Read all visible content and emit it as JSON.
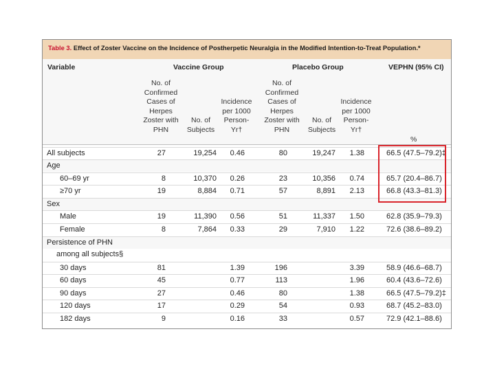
{
  "table": {
    "title_label": "Table 3.",
    "title_text": "Effect of Zoster Vaccine on the Incidence of Postherpetic Neuralgia in the Modified Intention-to-Treat Population.*",
    "variable_header": "Variable",
    "vaccine_group_header": "Vaccine Group",
    "placebo_group_header": "Placebo Group",
    "ve_header": "VEPHN (95% CI)",
    "col_cases_header": "No. of\nConfirmed\nCases of\nHerpes\nZoster with\nPHN",
    "col_subjects_header": "No. of\nSubjects",
    "col_incidence_header": "Incidence\nper 1000\nPerson-\nYr†",
    "percent_unit": "%",
    "rows": [
      {
        "label": "All subjects",
        "v_cases": "27",
        "v_subjects": "19,254",
        "v_inc": "0.46",
        "p_cases": "80",
        "p_subjects": "19,247",
        "p_inc": "1.38",
        "ve": "66.5 (47.5–79.2)‡"
      },
      {
        "label": "Age",
        "v_cases": "",
        "v_subjects": "",
        "v_inc": "",
        "p_cases": "",
        "p_subjects": "",
        "p_inc": "",
        "ve": ""
      },
      {
        "label": "60–69 yr",
        "v_cases": "8",
        "v_subjects": "10,370",
        "v_inc": "0.26",
        "p_cases": "23",
        "p_subjects": "10,356",
        "p_inc": "0.74",
        "ve": "65.7 (20.4–86.7)"
      },
      {
        "label": "≥70 yr",
        "v_cases": "19",
        "v_subjects": "8,884",
        "v_inc": "0.71",
        "p_cases": "57",
        "p_subjects": "8,891",
        "p_inc": "2.13",
        "ve": "66.8 (43.3–81.3)"
      },
      {
        "label": "Sex",
        "v_cases": "",
        "v_subjects": "",
        "v_inc": "",
        "p_cases": "",
        "p_subjects": "",
        "p_inc": "",
        "ve": ""
      },
      {
        "label": "Male",
        "v_cases": "19",
        "v_subjects": "11,390",
        "v_inc": "0.56",
        "p_cases": "51",
        "p_subjects": "11,337",
        "p_inc": "1.50",
        "ve": "62.8 (35.9–79.3)"
      },
      {
        "label": "Female",
        "v_cases": "8",
        "v_subjects": "7,864",
        "v_inc": "0.33",
        "p_cases": "29",
        "p_subjects": "7,910",
        "p_inc": "1.22",
        "ve": "72.6 (38.6–89.2)"
      },
      {
        "label": "Persistence of PHN",
        "v_cases": "",
        "v_subjects": "",
        "v_inc": "",
        "p_cases": "",
        "p_subjects": "",
        "p_inc": "",
        "ve": ""
      },
      {
        "label": "among all subjects§",
        "v_cases": "",
        "v_subjects": "",
        "v_inc": "",
        "p_cases": "",
        "p_subjects": "",
        "p_inc": "",
        "ve": ""
      },
      {
        "label": "30 days",
        "v_cases": "81",
        "v_subjects": "",
        "v_inc": "1.39",
        "p_cases": "196",
        "p_subjects": "",
        "p_inc": "3.39",
        "ve": "58.9 (46.6–68.7)"
      },
      {
        "label": "60 days",
        "v_cases": "45",
        "v_subjects": "",
        "v_inc": "0.77",
        "p_cases": "113",
        "p_subjects": "",
        "p_inc": "1.96",
        "ve": "60.4 (43.6–72.6)"
      },
      {
        "label": "90 days",
        "v_cases": "27",
        "v_subjects": "",
        "v_inc": "0.46",
        "p_cases": "80",
        "p_subjects": "",
        "p_inc": "1.38",
        "ve": "66.5 (47.5–79.2)‡"
      },
      {
        "label": "120 days",
        "v_cases": "17",
        "v_subjects": "",
        "v_inc": "0.29",
        "p_cases": "54",
        "p_subjects": "",
        "p_inc": "0.93",
        "ve": "68.7 (45.2–83.0)"
      },
      {
        "label": "182 days",
        "v_cases": "9",
        "v_subjects": "",
        "v_inc": "0.16",
        "p_cases": "33",
        "p_subjects": "",
        "p_inc": "0.57",
        "ve": "72.9 (42.1–88.6)"
      }
    ]
  },
  "colors": {
    "title_red": "#c8102e",
    "title_band": "#f1d6b5",
    "highlight_box": "#d9232a"
  }
}
